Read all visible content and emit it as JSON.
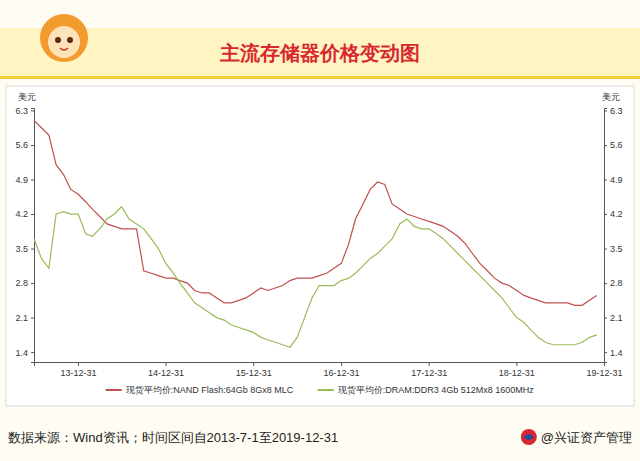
{
  "chart_data": {
    "type": "line",
    "title": "主流存储器价格变动图",
    "y_label": "美元",
    "y2_label": "美元",
    "source": "数据来源：Wind资讯；时间区间自2013-7-1至2019-12-31",
    "brand": "@兴证资产管理",
    "x": [
      "2013-07-01",
      "2013-08-01",
      "2013-09-01",
      "2013-10-01",
      "2013-11-01",
      "2013-12-01",
      "2014-01-01",
      "2014-02-01",
      "2014-03-01",
      "2014-04-01",
      "2014-05-01",
      "2014-06-01",
      "2014-07-01",
      "2014-08-01",
      "2014-09-01",
      "2014-10-01",
      "2014-11-01",
      "2014-12-01",
      "2015-01-01",
      "2015-02-01",
      "2015-03-01",
      "2015-04-01",
      "2015-05-01",
      "2015-06-01",
      "2015-07-01",
      "2015-08-01",
      "2015-09-01",
      "2015-10-01",
      "2015-11-01",
      "2015-12-01",
      "2016-01-01",
      "2016-02-01",
      "2016-03-01",
      "2016-04-01",
      "2016-05-01",
      "2016-06-01",
      "2016-07-01",
      "2016-08-01",
      "2016-09-01",
      "2016-10-01",
      "2016-11-01",
      "2016-12-01",
      "2017-01-01",
      "2017-02-01",
      "2017-03-01",
      "2017-04-01",
      "2017-05-01",
      "2017-06-01",
      "2017-07-01",
      "2017-08-01",
      "2017-09-01",
      "2017-10-01",
      "2017-11-01",
      "2017-12-01",
      "2018-01-01",
      "2018-02-01",
      "2018-03-01",
      "2018-04-01",
      "2018-05-01",
      "2018-06-01",
      "2018-07-01",
      "2018-08-01",
      "2018-09-01",
      "2018-10-01",
      "2018-11-01",
      "2018-12-01",
      "2019-01-01",
      "2019-02-01",
      "2019-03-01",
      "2019-04-01",
      "2019-05-01",
      "2019-06-01",
      "2019-07-01",
      "2019-08-01",
      "2019-09-01",
      "2019-10-01",
      "2019-11-01",
      "2019-12-01"
    ],
    "series": [
      {
        "name": "现货平均价:NAND Flash:64Gb 8Gx8 MLC",
        "color": "#c0504d",
        "line_style": "solid",
        "values": [
          6.1,
          5.95,
          5.8,
          5.2,
          5.0,
          4.7,
          4.6,
          4.45,
          4.3,
          4.15,
          4.0,
          3.95,
          3.9,
          3.9,
          3.9,
          3.05,
          3.0,
          2.95,
          2.9,
          2.9,
          2.85,
          2.8,
          2.65,
          2.6,
          2.6,
          2.5,
          2.4,
          2.4,
          2.45,
          2.5,
          2.6,
          2.7,
          2.65,
          2.7,
          2.75,
          2.85,
          2.9,
          2.9,
          2.9,
          2.95,
          3.0,
          3.1,
          3.2,
          3.6,
          4.1,
          4.4,
          4.7,
          4.85,
          4.8,
          4.4,
          4.3,
          4.2,
          4.15,
          4.1,
          4.05,
          4.0,
          3.95,
          3.85,
          3.75,
          3.6,
          3.4,
          3.2,
          3.05,
          2.9,
          2.8,
          2.75,
          2.65,
          2.55,
          2.5,
          2.45,
          2.4,
          2.4,
          2.4,
          2.4,
          2.35,
          2.35,
          2.45,
          2.55
        ]
      },
      {
        "name": "现货平均价:DRAM:DDR3 4Gb 512Mx8 1600MHz",
        "color": "#9bbb59",
        "line_style": "solid",
        "values": [
          3.7,
          3.3,
          3.1,
          4.2,
          4.25,
          4.2,
          4.2,
          3.8,
          3.75,
          3.9,
          4.1,
          4.2,
          4.35,
          4.1,
          4.0,
          3.9,
          3.7,
          3.5,
          3.2,
          3.0,
          2.8,
          2.6,
          2.4,
          2.3,
          2.2,
          2.1,
          2.05,
          1.95,
          1.9,
          1.85,
          1.8,
          1.7,
          1.65,
          1.6,
          1.55,
          1.5,
          1.7,
          2.1,
          2.5,
          2.75,
          2.75,
          2.75,
          2.85,
          2.9,
          3.0,
          3.15,
          3.3,
          3.4,
          3.55,
          3.7,
          4.0,
          4.1,
          3.95,
          3.9,
          3.9,
          3.8,
          3.7,
          3.55,
          3.4,
          3.25,
          3.1,
          2.95,
          2.8,
          2.65,
          2.5,
          2.3,
          2.1,
          2.0,
          1.85,
          1.7,
          1.6,
          1.55,
          1.55,
          1.55,
          1.55,
          1.6,
          1.7,
          1.75
        ]
      }
    ],
    "xlim": [
      "2013-07-01",
      "2019-12-31"
    ],
    "xticks": [
      {
        "value": "2013-12-31",
        "label": "13-12-31"
      },
      {
        "value": "2014-12-31",
        "label": "14-12-31"
      },
      {
        "value": "2015-12-31",
        "label": "15-12-31"
      },
      {
        "value": "2016-12-31",
        "label": "16-12-31"
      },
      {
        "value": "2017-12-31",
        "label": "17-12-31"
      },
      {
        "value": "2018-12-31",
        "label": "18-12-31"
      },
      {
        "value": "2019-12-31",
        "label": "19-12-31"
      }
    ],
    "ylim": [
      1.2,
      6.35
    ],
    "yticks": [
      1.4,
      2.1,
      2.8,
      3.5,
      4.2,
      4.9,
      5.6,
      6.3
    ],
    "y2lim": [
      1.2,
      6.35
    ],
    "y2ticks": [
      1.4,
      2.1,
      2.8,
      3.5,
      4.2,
      4.9,
      5.6,
      6.3
    ],
    "grid": false,
    "legend": "bottom"
  }
}
